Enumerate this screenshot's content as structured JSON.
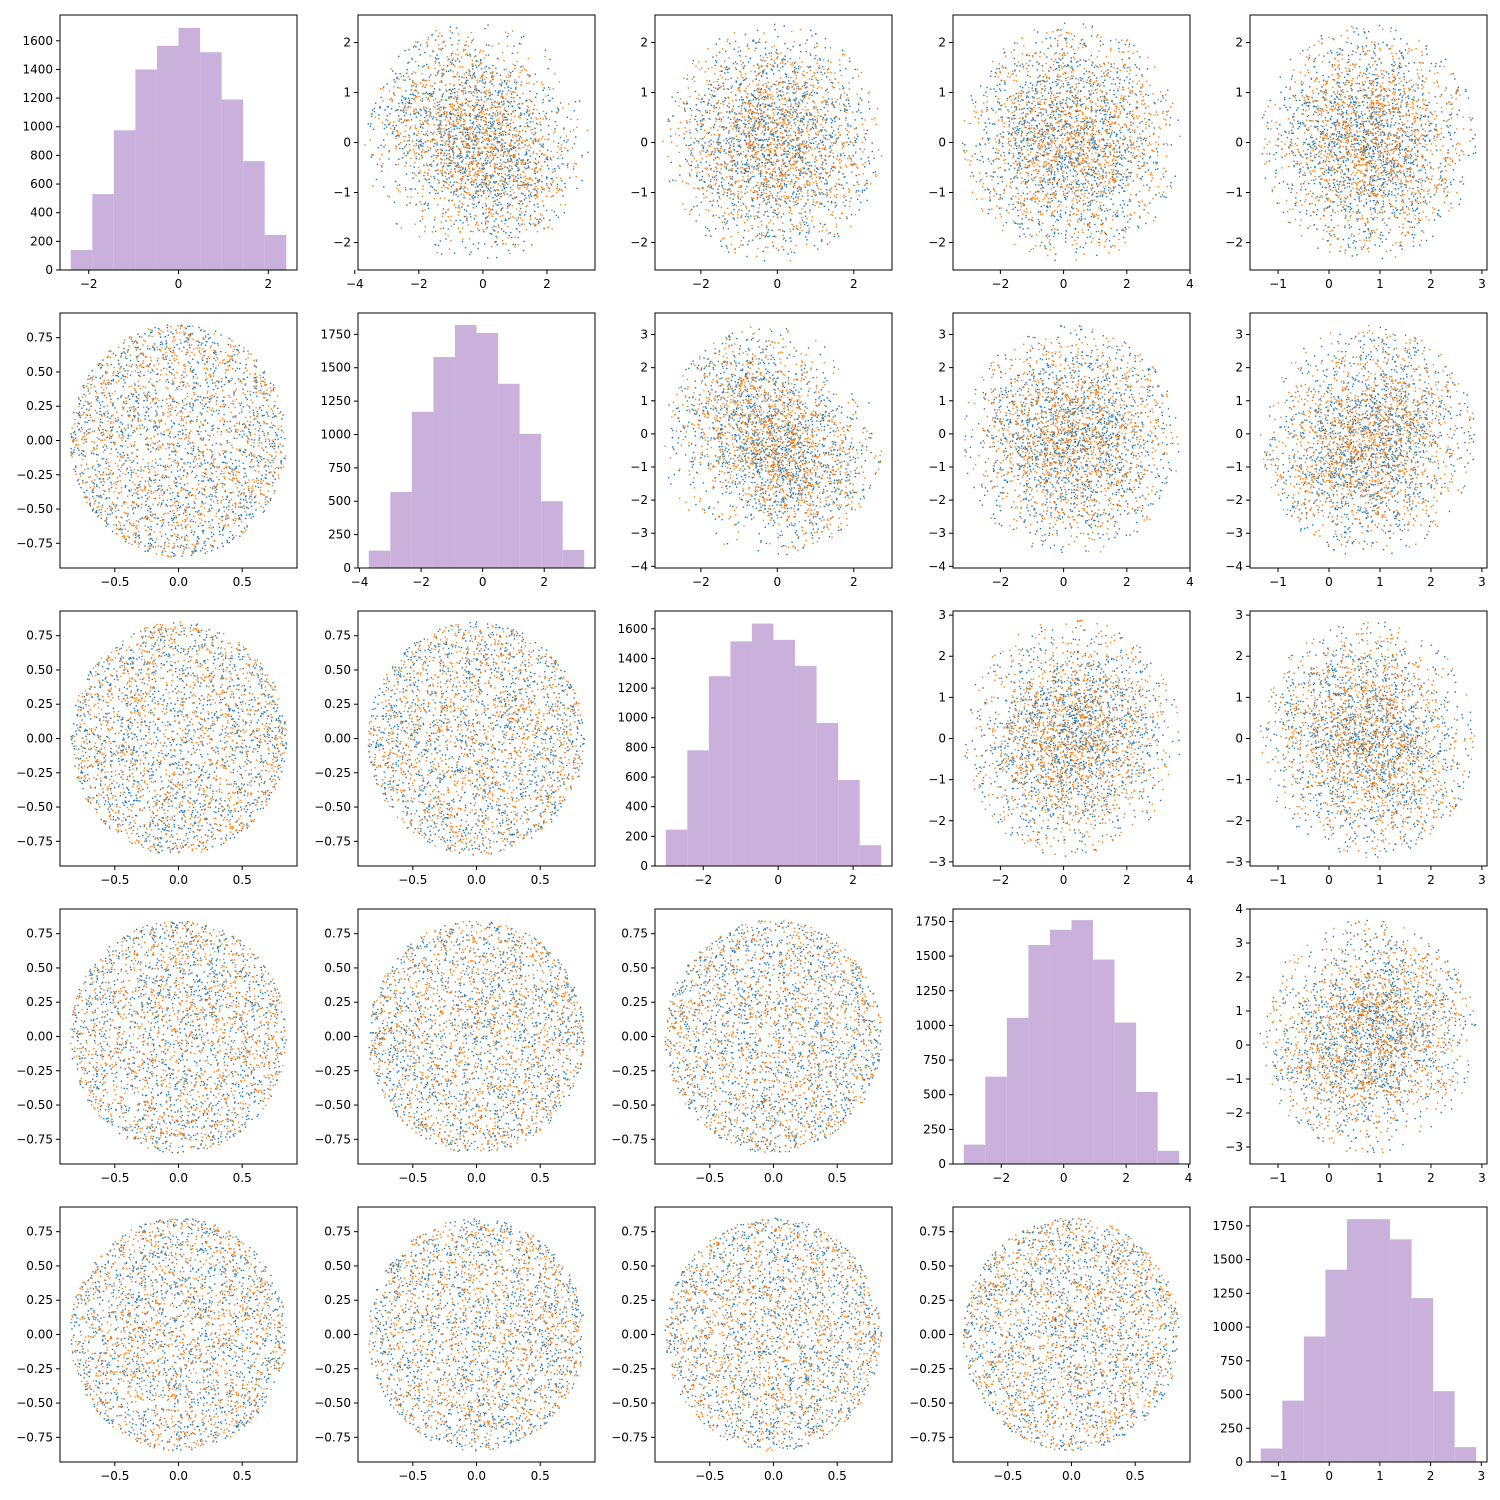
{
  "colors": {
    "hist": "#c9b1dc",
    "series_blue": "#1f77b4",
    "series_orange": "#ff7f0e",
    "axes": "#000000"
  },
  "chart_data": {
    "type": "scatter-matrix",
    "rows": 5,
    "cols": 5,
    "grid": false,
    "diag_ranges": [
      [
        -2.4,
        2.4
      ],
      [
        -3.7,
        3.3
      ],
      [
        -3.0,
        2.75
      ],
      [
        -3.2,
        3.7
      ],
      [
        -1.35,
        2.9
      ]
    ],
    "series": [
      {
        "name": "",
        "color": "#1f77b4"
      },
      {
        "name": "",
        "color": "#ff7f0e"
      }
    ],
    "histograms": [
      {
        "row": 0,
        "col": 0,
        "ylim": [
          0,
          1780
        ],
        "bins": [
          -2.4,
          -1.92,
          -1.44,
          -0.96,
          -0.48,
          0.0,
          0.48,
          0.96,
          1.44,
          1.92,
          2.4
        ],
        "counts": [
          140,
          530,
          975,
          1400,
          1565,
          1690,
          1520,
          1190,
          760,
          245
        ]
      },
      {
        "row": 1,
        "col": 1,
        "ylim": [
          0,
          1910
        ],
        "bins": [
          -3.7,
          -3.0,
          -2.3,
          -1.6,
          -0.9,
          -0.2,
          0.5,
          1.2,
          1.9,
          2.6,
          3.3
        ],
        "counts": [
          130,
          570,
          1170,
          1580,
          1820,
          1760,
          1380,
          1005,
          500,
          135
        ]
      },
      {
        "row": 2,
        "col": 2,
        "ylim": [
          0,
          1720
        ],
        "bins": [
          -3.0,
          -2.425,
          -1.85,
          -1.275,
          -0.7,
          -0.125,
          0.45,
          1.025,
          1.6,
          2.175,
          2.75
        ],
        "counts": [
          245,
          780,
          1280,
          1515,
          1635,
          1525,
          1350,
          965,
          580,
          140
        ]
      },
      {
        "row": 3,
        "col": 3,
        "ylim": [
          0,
          1840
        ],
        "bins": [
          -3.2,
          -2.51,
          -1.82,
          -1.13,
          -0.44,
          0.25,
          0.94,
          1.63,
          2.32,
          3.01,
          3.7
        ],
        "counts": [
          140,
          630,
          1055,
          1580,
          1690,
          1760,
          1475,
          1020,
          520,
          95
        ]
      },
      {
        "row": 4,
        "col": 4,
        "ylim": [
          0,
          1890
        ],
        "bins": [
          -1.35,
          -0.925,
          -0.5,
          -0.075,
          0.35,
          0.775,
          1.2,
          1.625,
          2.05,
          2.475,
          2.9
        ],
        "counts": [
          100,
          455,
          930,
          1425,
          1800,
          1800,
          1650,
          1215,
          525,
          110
        ]
      }
    ],
    "scatters": [
      {
        "row": 0,
        "col": 1,
        "xlim": [
          -3.9,
          3.5
        ],
        "ylim": [
          -2.55,
          2.55
        ],
        "x_range": [
          -3.7,
          3.3
        ],
        "y_range": [
          -2.4,
          2.4
        ],
        "correlation": -0.35
      },
      {
        "row": 0,
        "col": 2,
        "xlim": [
          -3.2,
          3.0
        ],
        "ylim": [
          -2.55,
          2.55
        ],
        "x_range": [
          -3.0,
          2.75
        ],
        "y_range": [
          -2.4,
          2.4
        ],
        "correlation": 0.0
      },
      {
        "row": 0,
        "col": 3,
        "xlim": [
          -3.5,
          4.0
        ],
        "ylim": [
          -2.55,
          2.55
        ],
        "x_range": [
          -3.2,
          3.7
        ],
        "y_range": [
          -2.4,
          2.4
        ],
        "correlation": 0.0
      },
      {
        "row": 0,
        "col": 4,
        "xlim": [
          -1.55,
          3.1
        ],
        "ylim": [
          -2.55,
          2.55
        ],
        "x_range": [
          -1.35,
          2.9
        ],
        "y_range": [
          -2.4,
          2.4
        ],
        "correlation": 0.0
      },
      {
        "row": 1,
        "col": 0,
        "xlim": [
          -0.93,
          0.93
        ],
        "ylim": [
          -0.93,
          0.93
        ],
        "x_range": [
          -0.85,
          0.85
        ],
        "y_range": [
          -0.85,
          0.85
        ],
        "shape": "disk"
      },
      {
        "row": 1,
        "col": 2,
        "xlim": [
          -3.2,
          3.0
        ],
        "ylim": [
          -4.05,
          3.65
        ],
        "x_range": [
          -3.0,
          2.75
        ],
        "y_range": [
          -3.7,
          3.3
        ],
        "correlation": -0.4
      },
      {
        "row": 1,
        "col": 3,
        "xlim": [
          -3.5,
          4.0
        ],
        "ylim": [
          -4.05,
          3.65
        ],
        "x_range": [
          -3.2,
          3.7
        ],
        "y_range": [
          -3.7,
          3.3
        ],
        "correlation": 0.0
      },
      {
        "row": 1,
        "col": 4,
        "xlim": [
          -1.55,
          3.1
        ],
        "ylim": [
          -4.05,
          3.65
        ],
        "x_range": [
          -1.35,
          2.9
        ],
        "y_range": [
          -3.7,
          3.3
        ],
        "correlation": 0.2
      },
      {
        "row": 2,
        "col": 0,
        "xlim": [
          -0.93,
          0.93
        ],
        "ylim": [
          -0.93,
          0.93
        ],
        "x_range": [
          -0.85,
          0.85
        ],
        "y_range": [
          -0.85,
          0.85
        ],
        "shape": "disk"
      },
      {
        "row": 2,
        "col": 1,
        "xlim": [
          -0.93,
          0.93
        ],
        "ylim": [
          -0.93,
          0.93
        ],
        "x_range": [
          -0.85,
          0.85
        ],
        "y_range": [
          -0.85,
          0.85
        ],
        "shape": "disk"
      },
      {
        "row": 2,
        "col": 3,
        "xlim": [
          -3.5,
          4.0
        ],
        "ylim": [
          -3.1,
          3.1
        ],
        "x_range": [
          -3.2,
          3.7
        ],
        "y_range": [
          -2.9,
          2.9
        ],
        "correlation": 0.1
      },
      {
        "row": 2,
        "col": 4,
        "xlim": [
          -1.55,
          3.1
        ],
        "ylim": [
          -3.1,
          3.1
        ],
        "x_range": [
          -1.35,
          2.9
        ],
        "y_range": [
          -2.9,
          2.9
        ],
        "correlation": -0.2
      },
      {
        "row": 3,
        "col": 0,
        "xlim": [
          -0.93,
          0.93
        ],
        "ylim": [
          -0.93,
          0.93
        ],
        "x_range": [
          -0.85,
          0.85
        ],
        "y_range": [
          -0.85,
          0.85
        ],
        "shape": "disk"
      },
      {
        "row": 3,
        "col": 1,
        "xlim": [
          -0.93,
          0.93
        ],
        "ylim": [
          -0.93,
          0.93
        ],
        "x_range": [
          -0.85,
          0.85
        ],
        "y_range": [
          -0.85,
          0.85
        ],
        "shape": "disk"
      },
      {
        "row": 3,
        "col": 2,
        "xlim": [
          -0.93,
          0.93
        ],
        "ylim": [
          -0.93,
          0.93
        ],
        "x_range": [
          -0.85,
          0.85
        ],
        "y_range": [
          -0.85,
          0.85
        ],
        "shape": "disk"
      },
      {
        "row": 3,
        "col": 4,
        "xlim": [
          -1.55,
          3.1
        ],
        "ylim": [
          -3.5,
          4.0
        ],
        "x_range": [
          -1.35,
          2.9
        ],
        "y_range": [
          -3.2,
          3.7
        ],
        "correlation": 0.2
      },
      {
        "row": 4,
        "col": 0,
        "xlim": [
          -0.93,
          0.93
        ],
        "ylim": [
          -0.93,
          0.93
        ],
        "x_range": [
          -0.85,
          0.85
        ],
        "y_range": [
          -0.85,
          0.85
        ],
        "shape": "disk"
      },
      {
        "row": 4,
        "col": 1,
        "xlim": [
          -0.93,
          0.93
        ],
        "ylim": [
          -0.93,
          0.93
        ],
        "x_range": [
          -0.85,
          0.85
        ],
        "y_range": [
          -0.85,
          0.85
        ],
        "shape": "disk"
      },
      {
        "row": 4,
        "col": 2,
        "xlim": [
          -0.93,
          0.93
        ],
        "ylim": [
          -0.93,
          0.93
        ],
        "x_range": [
          -0.85,
          0.85
        ],
        "y_range": [
          -0.85,
          0.85
        ],
        "shape": "disk"
      },
      {
        "row": 4,
        "col": 3,
        "xlim": [
          -0.93,
          0.93
        ],
        "ylim": [
          -0.93,
          0.93
        ],
        "x_range": [
          -0.85,
          0.85
        ],
        "y_range": [
          -0.85,
          0.85
        ],
        "shape": "disk"
      }
    ],
    "x_ticks": [
      [
        [
          -2,
          "−2"
        ],
        [
          0,
          "0"
        ],
        [
          2,
          "2"
        ]
      ],
      [
        [
          -4,
          "−4"
        ],
        [
          -2,
          "−2"
        ],
        [
          0,
          "0"
        ],
        [
          2,
          "2"
        ]
      ],
      [
        [
          -2,
          "−2"
        ],
        [
          0,
          "0"
        ],
        [
          2,
          "2"
        ]
      ],
      [
        [
          -2,
          "−2"
        ],
        [
          0,
          "0"
        ],
        [
          2,
          "2"
        ],
        [
          4,
          "4"
        ]
      ],
      [
        [
          -1,
          "−1"
        ],
        [
          0,
          "0"
        ],
        [
          1,
          "1"
        ],
        [
          2,
          "2"
        ],
        [
          3,
          "3"
        ]
      ]
    ],
    "x_ticks_disk": [
      [
        -0.5,
        "−0.5"
      ],
      [
        0,
        "0.0"
      ],
      [
        0.5,
        "0.5"
      ]
    ],
    "y_ticks_row": [
      [
        [
          -2,
          "−2"
        ],
        [
          -1,
          "−1"
        ],
        [
          0,
          "0"
        ],
        [
          1,
          "1"
        ],
        [
          2,
          "2"
        ]
      ],
      [
        [
          -4,
          "−4"
        ],
        [
          -3,
          "−3"
        ],
        [
          -2,
          "−2"
        ],
        [
          -1,
          "−1"
        ],
        [
          0,
          "0"
        ],
        [
          1,
          "1"
        ],
        [
          2,
          "2"
        ],
        [
          3,
          "3"
        ]
      ],
      [
        [
          -3,
          "−3"
        ],
        [
          -2,
          "−2"
        ],
        [
          -1,
          "−1"
        ],
        [
          0,
          "0"
        ],
        [
          1,
          "1"
        ],
        [
          2,
          "2"
        ],
        [
          3,
          "3"
        ]
      ],
      [
        [
          -3,
          "−3"
        ],
        [
          -2,
          "−2"
        ],
        [
          -1,
          "−1"
        ],
        [
          0,
          "0"
        ],
        [
          1,
          "1"
        ],
        [
          2,
          "2"
        ],
        [
          3,
          "3"
        ],
        [
          4,
          "4"
        ]
      ],
      []
    ],
    "y_ticks_disk": [
      [
        -0.75,
        "−0.75"
      ],
      [
        -0.5,
        "−0.50"
      ],
      [
        -0.25,
        "−0.25"
      ],
      [
        0,
        "0.00"
      ],
      [
        0.25,
        "0.25"
      ],
      [
        0.5,
        "0.50"
      ],
      [
        0.75,
        "0.75"
      ]
    ],
    "y_ticks_hist": [
      [
        [
          0,
          "0"
        ],
        [
          200,
          "200"
        ],
        [
          400,
          "400"
        ],
        [
          600,
          "600"
        ],
        [
          800,
          "800"
        ],
        [
          1000,
          "1000"
        ],
        [
          1200,
          "1200"
        ],
        [
          1400,
          "1400"
        ],
        [
          1600,
          "1600"
        ]
      ],
      [
        [
          0,
          "0"
        ],
        [
          250,
          "250"
        ],
        [
          500,
          "500"
        ],
        [
          750,
          "750"
        ],
        [
          1000,
          "1000"
        ],
        [
          1250,
          "1250"
        ],
        [
          1500,
          "1500"
        ],
        [
          1750,
          "1750"
        ]
      ],
      [
        [
          0,
          "0"
        ],
        [
          200,
          "200"
        ],
        [
          400,
          "400"
        ],
        [
          600,
          "600"
        ],
        [
          800,
          "800"
        ],
        [
          1000,
          "1000"
        ],
        [
          1200,
          "1200"
        ],
        [
          1400,
          "1400"
        ],
        [
          1600,
          "1600"
        ]
      ],
      [
        [
          0,
          "0"
        ],
        [
          250,
          "250"
        ],
        [
          500,
          "500"
        ],
        [
          750,
          "750"
        ],
        [
          1000,
          "1000"
        ],
        [
          1250,
          "1250"
        ],
        [
          1500,
          "1500"
        ],
        [
          1750,
          "1750"
        ]
      ],
      [
        [
          0,
          "0"
        ],
        [
          250,
          "250"
        ],
        [
          500,
          "500"
        ],
        [
          750,
          "750"
        ],
        [
          1000,
          "1000"
        ],
        [
          1250,
          "1250"
        ],
        [
          1500,
          "1500"
        ],
        [
          1750,
          "1750"
        ]
      ]
    ]
  }
}
